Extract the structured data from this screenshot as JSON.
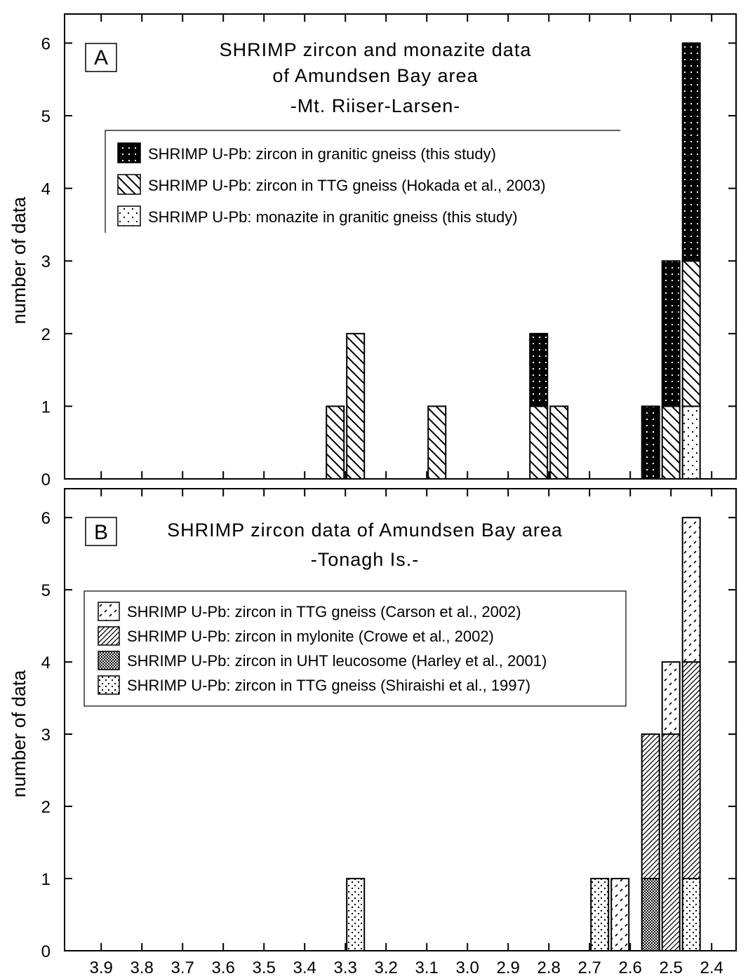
{
  "chart_data": [
    {
      "type": "bar",
      "panel": "A",
      "title_lines": [
        "SHRIMP zircon and monazite data",
        "of Amundsen Bay area",
        "-Mt. Riiser-Larsen-"
      ],
      "ylabel": "number of data",
      "xlabel": "",
      "ylim": [
        0,
        6.4
      ],
      "yticks": [
        0,
        1,
        2,
        3,
        4,
        5,
        6
      ],
      "xlim": [
        3.99,
        2.34
      ],
      "xticks": [
        3.9,
        3.8,
        3.7,
        3.6,
        3.5,
        3.4,
        3.3,
        3.2,
        3.1,
        3.0,
        2.9,
        2.8,
        2.7,
        2.6,
        2.5,
        2.4
      ],
      "stacked": true,
      "series": [
        {
          "name": "SHRIMP U-Pb: monazite in granitic gneiss (this study)",
          "pattern": "dots-sparse",
          "bars": [
            {
              "x": 2.45,
              "value": 1
            }
          ]
        },
        {
          "name": "SHRIMP U-Pb: zircon in TTG gneiss (Hokada et al., 2003)",
          "pattern": "backslash",
          "bars": [
            {
              "x": 3.325,
              "value": 1
            },
            {
              "x": 3.275,
              "value": 2
            },
            {
              "x": 3.075,
              "value": 1
            },
            {
              "x": 2.825,
              "value": 1
            },
            {
              "x": 2.775,
              "value": 1
            },
            {
              "x": 2.5,
              "value": 1
            },
            {
              "x": 2.45,
              "value": 2
            }
          ]
        },
        {
          "name": "SHRIMP U-Pb: zircon in granitic gneiss (this study)",
          "pattern": "black-dots",
          "bars": [
            {
              "x": 2.825,
              "value": 1
            },
            {
              "x": 2.55,
              "value": 1
            },
            {
              "x": 2.5,
              "value": 2
            },
            {
              "x": 2.45,
              "value": 3
            }
          ]
        }
      ],
      "legend_order": [
        2,
        1,
        0
      ],
      "legend_position": "upper-center",
      "grid": false
    },
    {
      "type": "bar",
      "panel": "B",
      "title_lines": [
        "SHRIMP zircon data of Amundsen Bay area",
        "-Tonagh Is.-"
      ],
      "ylabel": "number of data",
      "xlabel": "",
      "ylim": [
        0,
        6.4
      ],
      "yticks": [
        0,
        1,
        2,
        3,
        4,
        5,
        6
      ],
      "xlim": [
        3.99,
        2.34
      ],
      "xticks": [
        3.9,
        3.8,
        3.7,
        3.6,
        3.5,
        3.4,
        3.3,
        3.2,
        3.1,
        3.0,
        2.9,
        2.8,
        2.7,
        2.6,
        2.5,
        2.4
      ],
      "stacked": true,
      "series": [
        {
          "name": "SHRIMP U-Pb: zircon in TTG gneiss (Shiraishi et al., 1997)",
          "pattern": "dots-dense",
          "bars": [
            {
              "x": 3.275,
              "value": 1
            },
            {
              "x": 2.675,
              "value": 1
            },
            {
              "x": 2.45,
              "value": 1
            }
          ]
        },
        {
          "name": "SHRIMP U-Pb: zircon in UHT leucosome (Harley et al., 2001)",
          "pattern": "crosshatch",
          "bars": [
            {
              "x": 2.55,
              "value": 1
            }
          ]
        },
        {
          "name": "SHRIMP U-Pb: zircon in mylonite (Crowe et al., 2002)",
          "pattern": "diag-dense",
          "bars": [
            {
              "x": 2.55,
              "value": 2
            },
            {
              "x": 2.5,
              "value": 3
            },
            {
              "x": 2.45,
              "value": 3
            }
          ]
        },
        {
          "name": "SHRIMP U-Pb: zircon in TTG gneiss (Carson et al., 2002)",
          "pattern": "dashes",
          "bars": [
            {
              "x": 2.625,
              "value": 1
            },
            {
              "x": 2.5,
              "value": 1
            },
            {
              "x": 2.45,
              "value": 2
            }
          ]
        }
      ],
      "legend_order": [
        3,
        2,
        1,
        0
      ],
      "legend_position": "middle-left",
      "grid": false
    }
  ]
}
